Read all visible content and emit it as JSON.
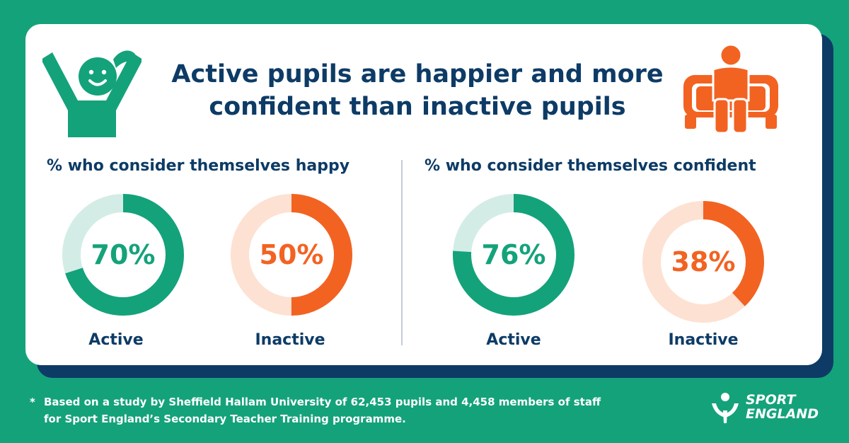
{
  "chart_data": {
    "type": "pie",
    "title_lines": [
      "Active pupils are happier and more",
      "confident than inactive pupils"
    ],
    "groups": [
      {
        "title": "% who consider themselves happy",
        "items": [
          {
            "label": "Active",
            "value": 70,
            "display": "70%",
            "color": "#14a27b",
            "track": "#d3ede6"
          },
          {
            "label": "Inactive",
            "value": 50,
            "display": "50%",
            "color": "#f26322",
            "track": "#fde1d2"
          }
        ]
      },
      {
        "title": "% who consider themselves confident",
        "items": [
          {
            "label": "Active",
            "value": 76,
            "display": "76%",
            "color": "#14a27b",
            "track": "#d3ede6"
          },
          {
            "label": "Inactive",
            "value": 38,
            "display": "38%",
            "color": "#f26322",
            "track": "#fde1d2"
          }
        ]
      }
    ]
  },
  "icons": {
    "kid": "cheering-child-icon",
    "sofa": "person-on-sofa-icon",
    "logo": "sport-england-logo-icon"
  },
  "colors": {
    "background": "#14a27b",
    "navy": "#0d3b66",
    "green": "#14a27b",
    "orange": "#f26322"
  },
  "footnote": {
    "marker": "*",
    "lines": [
      "Based on a study by Sheffield Hallam University of 62,453 pupils and 4,458 members of staff",
      "for Sport England’s Secondary Teacher Training programme."
    ]
  },
  "logo": {
    "line1": "SPORT",
    "line2": "ENGLAND"
  }
}
